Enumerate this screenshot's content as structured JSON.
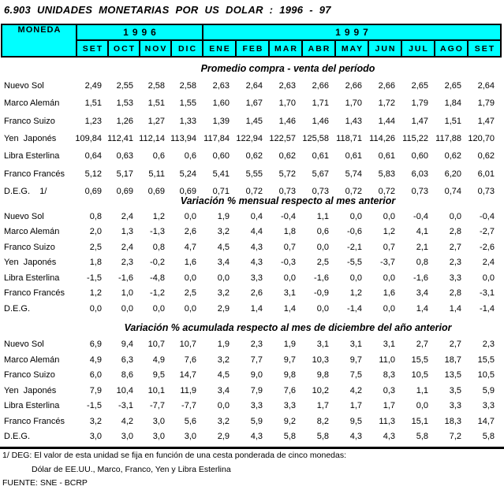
{
  "title": "6.903 UNIDADES MONETARIAS POR US DOLAR : 1996 - 97",
  "colors": {
    "header_bg": "#00ffff",
    "border": "#000000",
    "text": "#000000",
    "page_bg": "#ffffff"
  },
  "header": {
    "moneda_label": "MONEDA",
    "years": [
      {
        "label": "1996",
        "months": [
          "SET",
          "OCT",
          "NOV",
          "DIC"
        ]
      },
      {
        "label": "1997",
        "months": [
          "ENE",
          "FEB",
          "MAR",
          "ABR",
          "MAY",
          "JUN",
          "JUL",
          "AGO",
          "SET"
        ]
      }
    ]
  },
  "sections": [
    {
      "heading": "Promedio compra - venta del período",
      "rows": [
        {
          "label": "Nuevo Sol",
          "values": [
            "2,49",
            "2,55",
            "2,58",
            "2,58",
            "2,63",
            "2,64",
            "2,63",
            "2,66",
            "2,66",
            "2,66",
            "2,65",
            "2,65",
            "2,64"
          ]
        },
        {
          "label": "Marco Alemán",
          "values": [
            "1,51",
            "1,53",
            "1,51",
            "1,55",
            "1,60",
            "1,67",
            "1,70",
            "1,71",
            "1,70",
            "1,72",
            "1,79",
            "1,84",
            "1,79"
          ]
        },
        {
          "label": "Franco Suizo",
          "values": [
            "1,23",
            "1,26",
            "1,27",
            "1,33",
            "1,39",
            "1,45",
            "1,46",
            "1,46",
            "1,43",
            "1,44",
            "1,47",
            "1,51",
            "1,47"
          ]
        },
        {
          "label": "Yen  Japonés",
          "values": [
            "109,84",
            "112,41",
            "112,14",
            "113,94",
            "117,84",
            "122,94",
            "122,57",
            "125,58",
            "118,71",
            "114,26",
            "115,22",
            "117,88",
            "120,70"
          ]
        },
        {
          "label": "Libra Esterlina",
          "values": [
            "0,64",
            "0,63",
            "0,6",
            "0,6",
            "0,60",
            "0,62",
            "0,62",
            "0,61",
            "0,61",
            "0,61",
            "0,60",
            "0,62",
            "0,62"
          ]
        },
        {
          "label": "Franco Francés",
          "values": [
            "5,12",
            "5,17",
            "5,11",
            "5,24",
            "5,41",
            "5,55",
            "5,72",
            "5,67",
            "5,74",
            "5,83",
            "6,03",
            "6,20",
            "6,01"
          ]
        },
        {
          "label": "D.E.G.    1/",
          "values": [
            "0,69",
            "0,69",
            "0,69",
            "0,69",
            "0,71",
            "0,72",
            "0,73",
            "0,73",
            "0,72",
            "0,72",
            "0,73",
            "0,74",
            "0,73"
          ]
        }
      ]
    },
    {
      "heading": "Variación % mensual respecto al mes anterior",
      "rows": [
        {
          "label": "Nuevo Sol",
          "values": [
            "0,8",
            "2,4",
            "1,2",
            "0,0",
            "1,9",
            "0,4",
            "-0,4",
            "1,1",
            "0,0",
            "0,0",
            "-0,4",
            "0,0",
            "-0,4"
          ]
        },
        {
          "label": "Marco Alemán",
          "values": [
            "2,0",
            "1,3",
            "-1,3",
            "2,6",
            "3,2",
            "4,4",
            "1,8",
            "0,6",
            "-0,6",
            "1,2",
            "4,1",
            "2,8",
            "-2,7"
          ]
        },
        {
          "label": "Franco Suizo",
          "values": [
            "2,5",
            "2,4",
            "0,8",
            "4,7",
            "4,5",
            "4,3",
            "0,7",
            "0,0",
            "-2,1",
            "0,7",
            "2,1",
            "2,7",
            "-2,6"
          ]
        },
        {
          "label": "Yen  Japonés",
          "values": [
            "1,8",
            "2,3",
            "-0,2",
            "1,6",
            "3,4",
            "4,3",
            "-0,3",
            "2,5",
            "-5,5",
            "-3,7",
            "0,8",
            "2,3",
            "2,4"
          ]
        },
        {
          "label": "Libra Esterlina",
          "values": [
            "-1,5",
            "-1,6",
            "-4,8",
            "0,0",
            "0,0",
            "3,3",
            "0,0",
            "-1,6",
            "0,0",
            "0,0",
            "-1,6",
            "3,3",
            "0,0"
          ]
        },
        {
          "label": "Franco Francés",
          "values": [
            "1,2",
            "1,0",
            "-1,2",
            "2,5",
            "3,2",
            "2,6",
            "3,1",
            "-0,9",
            "1,2",
            "1,6",
            "3,4",
            "2,8",
            "-3,1"
          ]
        },
        {
          "label": "D.E.G.",
          "values": [
            "0,0",
            "0,0",
            "0,0",
            "0,0",
            "2,9",
            "1,4",
            "1,4",
            "0,0",
            "-1,4",
            "0,0",
            "1,4",
            "1,4",
            "-1,4"
          ]
        }
      ]
    },
    {
      "heading": "Variación % acumulada respecto al mes de diciembre del año anterior",
      "rows": [
        {
          "label": "Nuevo Sol",
          "values": [
            "6,9",
            "9,4",
            "10,7",
            "10,7",
            "1,9",
            "2,3",
            "1,9",
            "3,1",
            "3,1",
            "3,1",
            "2,7",
            "2,7",
            "2,3"
          ]
        },
        {
          "label": "Marco Alemán",
          "values": [
            "4,9",
            "6,3",
            "4,9",
            "7,6",
            "3,2",
            "7,7",
            "9,7",
            "10,3",
            "9,7",
            "11,0",
            "15,5",
            "18,7",
            "15,5"
          ]
        },
        {
          "label": "Franco Suizo",
          "values": [
            "6,0",
            "8,6",
            "9,5",
            "14,7",
            "4,5",
            "9,0",
            "9,8",
            "9,8",
            "7,5",
            "8,3",
            "10,5",
            "13,5",
            "10,5"
          ]
        },
        {
          "label": "Yen  Japonés",
          "values": [
            "7,9",
            "10,4",
            "10,1",
            "11,9",
            "3,4",
            "7,9",
            "7,6",
            "10,2",
            "4,2",
            "0,3",
            "1,1",
            "3,5",
            "5,9"
          ]
        },
        {
          "label": "Libra Esterlina",
          "values": [
            "-1,5",
            "-3,1",
            "-7,7",
            "-7,7",
            "0,0",
            "3,3",
            "3,3",
            "1,7",
            "1,7",
            "1,7",
            "0,0",
            "3,3",
            "3,3"
          ]
        },
        {
          "label": "Franco Francés",
          "values": [
            "3,2",
            "4,2",
            "3,0",
            "5,6",
            "3,2",
            "5,9",
            "9,2",
            "8,2",
            "9,5",
            "11,3",
            "15,1",
            "18,3",
            "14,7"
          ]
        },
        {
          "label": "D.E.G.",
          "values": [
            "3,0",
            "3,0",
            "3,0",
            "3,0",
            "2,9",
            "4,3",
            "5,8",
            "5,8",
            "4,3",
            "4,3",
            "5,8",
            "7,2",
            "5,8"
          ]
        }
      ]
    }
  ],
  "footnotes": [
    "1/ DEG: El valor de esta unidad se fija en función de una cesta ponderada de cinco monedas:",
    "Dólar de EE.UU., Marco, Franco, Yen y Libra Esterlina",
    "FUENTE: SNE - BCRP"
  ]
}
